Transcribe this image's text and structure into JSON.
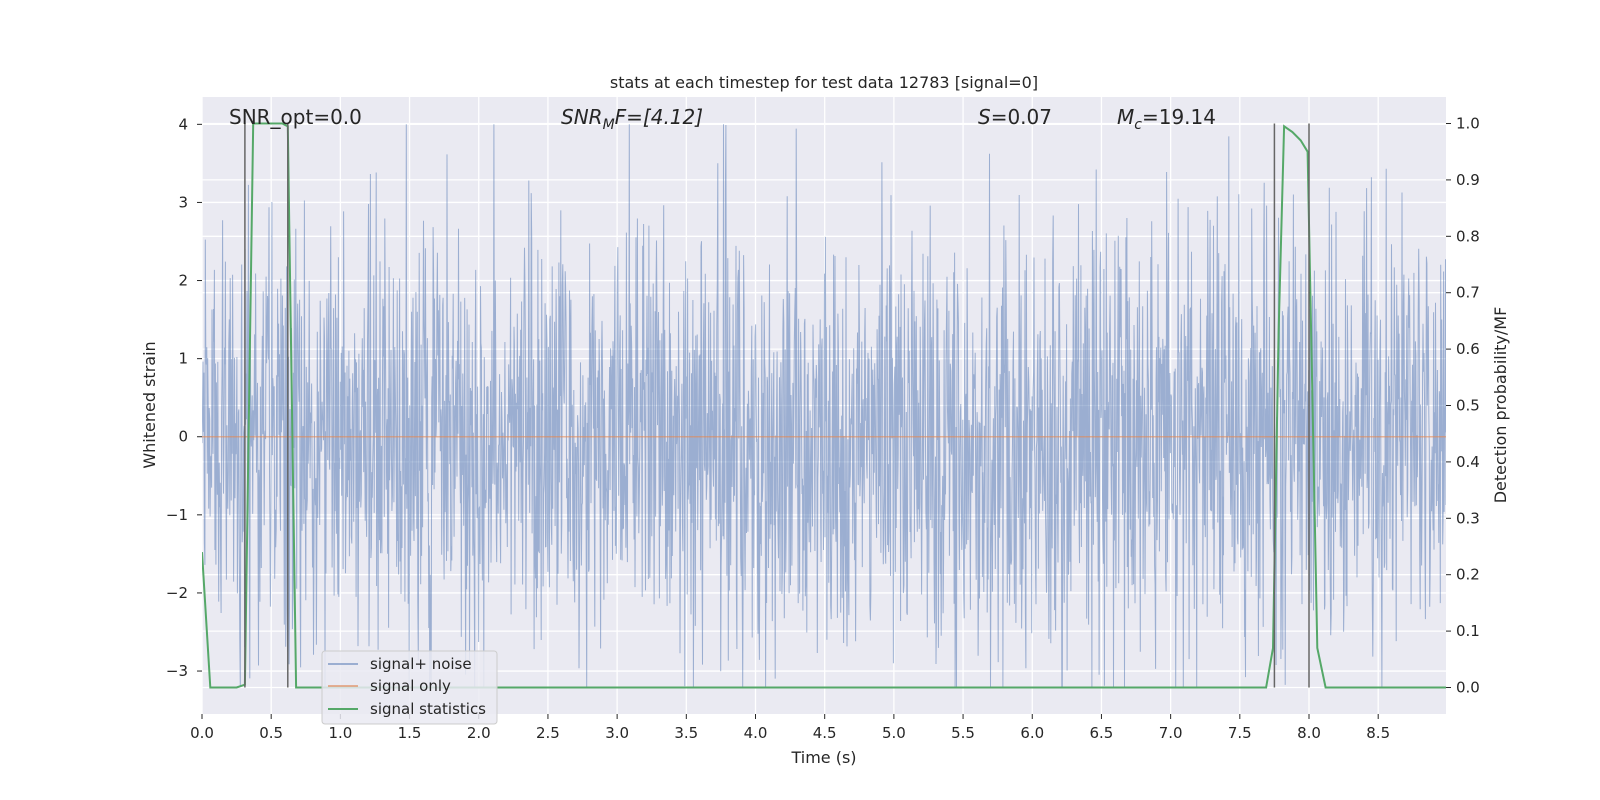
{
  "chart_data": {
    "type": "line",
    "title": "stats at each timestep for test data 12783 [signal=0]",
    "xlabel": "Time (s)",
    "ylabel": "Whitened strain",
    "ylabel_right": "Detection probability/MF",
    "xlim": [
      0.0,
      8.99
    ],
    "ylim": [
      -3.55,
      4.35
    ],
    "ylim_right": [
      -0.047,
      1.047
    ],
    "x_ticks": [
      "0.0",
      "0.5",
      "1.0",
      "1.5",
      "2.0",
      "2.5",
      "3.0",
      "3.5",
      "4.0",
      "4.5",
      "5.0",
      "5.5",
      "6.0",
      "6.5",
      "7.0",
      "7.5",
      "8.0",
      "8.5"
    ],
    "y_ticks": [
      "−3",
      "−2",
      "−1",
      "0",
      "1",
      "2",
      "3",
      "4"
    ],
    "y_ticks_right": [
      "0.0",
      "0.1",
      "0.2",
      "0.3",
      "0.4",
      "0.5",
      "0.6",
      "0.7",
      "0.8",
      "0.9",
      "1.0"
    ],
    "grid": true,
    "legend_position": "lower-left",
    "annotations": {
      "snr_opt": "SNR_opt=0.0",
      "snr_mf_main": "SNR",
      "snr_mf_sub": "M",
      "snr_mf_rest": "F=[4.12]",
      "s_main": "S",
      "s_rest": "=0.07",
      "mc_main": "M",
      "mc_sub": "c",
      "mc_rest": "=19.14"
    },
    "series": [
      {
        "name": "signal+ noise",
        "color": "#4c72b0",
        "kind": "noise",
        "sample_rate": 2048,
        "envelope_max": 4.0,
        "envelope_min": -3.2,
        "typical_abs": 2.2
      },
      {
        "name": "signal only",
        "color": "#dd8452",
        "x": [
          0.0,
          8.99
        ],
        "y": [
          0.0,
          0.0
        ]
      },
      {
        "name": "signal statistics",
        "color": "#55a868",
        "axis": "right",
        "x": [
          0.0,
          0.06,
          0.25,
          0.31,
          0.37,
          0.58,
          0.62,
          0.68,
          0.75,
          7.69,
          7.74,
          7.78,
          7.82,
          7.88,
          7.94,
          7.99,
          8.06,
          8.12,
          8.99
        ],
        "y": [
          0.24,
          0.0,
          0.0,
          0.005,
          1.0,
          1.0,
          0.995,
          0.0,
          0.0,
          0.0,
          0.07,
          0.63,
          0.995,
          0.985,
          0.97,
          0.95,
          0.07,
          0.0,
          0.0
        ]
      }
    ],
    "vertical_lines": [
      0.31,
      0.62,
      7.75,
      8.0
    ],
    "vertical_line_color": "#666666"
  }
}
